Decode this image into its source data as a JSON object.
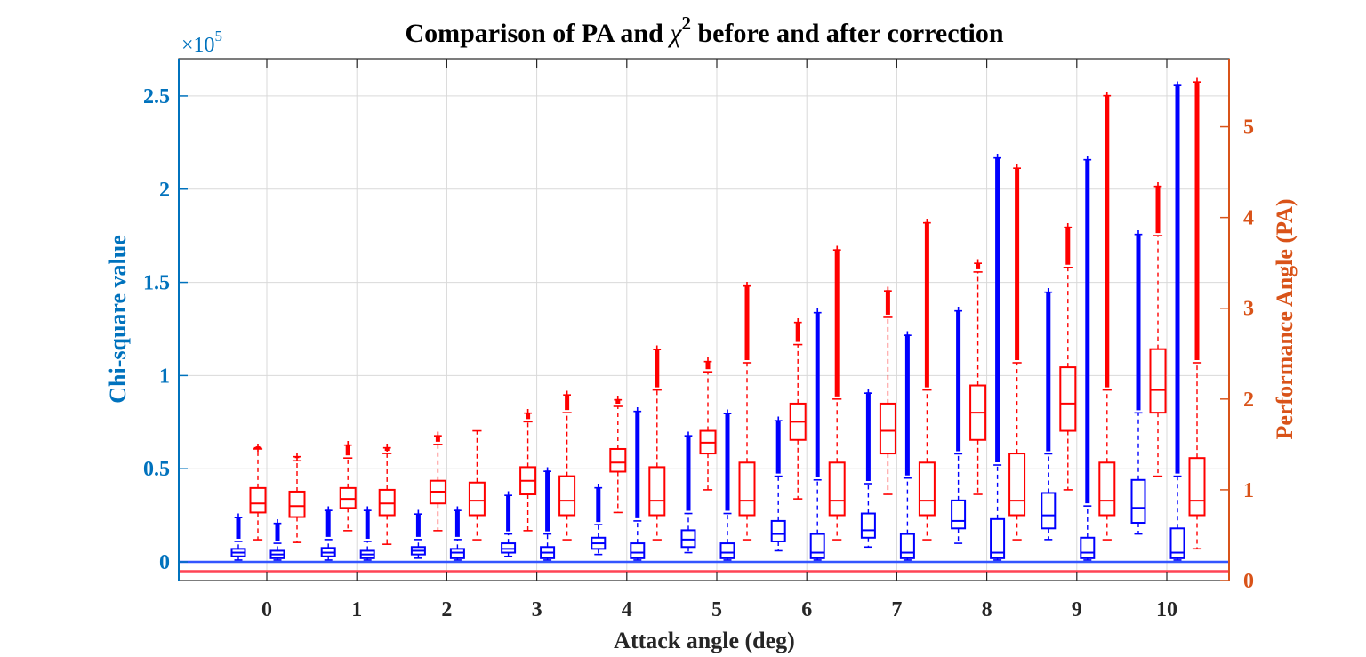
{
  "chart_data": {
    "type": "box",
    "title": "Comparison of PA and χ2 before and after correction",
    "title_parts": {
      "prefix": "Comparison of PA and ",
      "symbol": "χ",
      "superscript": "2",
      "suffix": " before and after correction"
    },
    "xlabel": "Attack angle (deg)",
    "ylabel_left": "Chi-square value",
    "ylabel_right": "Performance Angle (PA)",
    "left_axis_exponent": "×10",
    "left_axis_exponent_power": "5",
    "categories": [
      "0",
      "1",
      "2",
      "3",
      "4",
      "5",
      "6",
      "7",
      "8",
      "9",
      "10"
    ],
    "left_ylim": [
      -0.1,
      2.7
    ],
    "right_ylim": [
      0,
      5.75
    ],
    "left_ticks": [
      0,
      0.5,
      1,
      1.5,
      2,
      2.5
    ],
    "left_tick_labels": [
      "0",
      "0.5",
      "1",
      "1.5",
      "2",
      "2.5"
    ],
    "right_ticks": [
      0,
      1,
      2,
      3,
      4,
      5
    ],
    "right_tick_labels": [
      "0",
      "1",
      "2",
      "3",
      "4",
      "5"
    ],
    "grid": true,
    "colors": {
      "chi_square": "#0000FF",
      "pa": "#FF0000",
      "left_axis": "#0072BD",
      "right_axis": "#D95319",
      "grid": "#D9D9D9",
      "blue_line": "#3355FF",
      "red_line": "#FF4455"
    },
    "reference_lines": [
      {
        "axis": "left",
        "value": 0.0,
        "color": "#3355FF"
      },
      {
        "axis": "left",
        "value": -0.05,
        "color": "#FF4455"
      }
    ],
    "groups": [
      {
        "angle": 0,
        "chi_before": {
          "q1": 0.03,
          "median": 0.05,
          "q3": 0.07,
          "whisker_low": 0.01,
          "whisker_high": 0.11,
          "outlier_max": 0.24
        },
        "pa_before": {
          "q1": 0.75,
          "median": 0.85,
          "q3": 1.02,
          "whisker_low": 0.45,
          "whisker_high": 1.45,
          "outlier_max": 1.47
        },
        "chi_after": {
          "q1": 0.02,
          "median": 0.04,
          "q3": 0.06,
          "whisker_low": 0.01,
          "whisker_high": 0.1,
          "outlier_max": 0.21
        },
        "pa_after": {
          "q1": 0.7,
          "median": 0.82,
          "q3": 0.98,
          "whisker_low": 0.42,
          "whisker_high": 1.32,
          "outlier_max": 1.37
        }
      },
      {
        "angle": 1,
        "chi_before": {
          "q1": 0.03,
          "median": 0.05,
          "q3": 0.075,
          "whisker_low": 0.01,
          "whisker_high": 0.12,
          "outlier_max": 0.28
        },
        "pa_before": {
          "q1": 0.8,
          "median": 0.9,
          "q3": 1.02,
          "whisker_low": 0.55,
          "whisker_high": 1.35,
          "outlier_max": 1.5
        },
        "chi_after": {
          "q1": 0.02,
          "median": 0.04,
          "q3": 0.06,
          "whisker_low": 0.01,
          "whisker_high": 0.11,
          "outlier_max": 0.28
        },
        "pa_after": {
          "q1": 0.72,
          "median": 0.85,
          "q3": 1.0,
          "whisker_low": 0.4,
          "whisker_high": 1.4,
          "outlier_max": 1.47
        }
      },
      {
        "angle": 2,
        "chi_before": {
          "q1": 0.04,
          "median": 0.06,
          "q3": 0.08,
          "whisker_low": 0.02,
          "whisker_high": 0.12,
          "outlier_max": 0.26
        },
        "pa_before": {
          "q1": 0.85,
          "median": 0.98,
          "q3": 1.1,
          "whisker_low": 0.55,
          "whisker_high": 1.5,
          "outlier_max": 1.6
        },
        "chi_after": {
          "q1": 0.02,
          "median": 0.05,
          "q3": 0.07,
          "whisker_low": 0.01,
          "whisker_high": 0.12,
          "outlier_max": 0.28
        },
        "pa_after": {
          "q1": 0.72,
          "median": 0.88,
          "q3": 1.08,
          "whisker_low": 0.45,
          "whisker_high": 1.65,
          "outlier_max": 1.65
        }
      },
      {
        "angle": 3,
        "chi_before": {
          "q1": 0.05,
          "median": 0.07,
          "q3": 0.1,
          "whisker_low": 0.03,
          "whisker_high": 0.15,
          "outlier_max": 0.36
        },
        "pa_before": {
          "q1": 0.95,
          "median": 1.1,
          "q3": 1.25,
          "whisker_low": 0.55,
          "whisker_high": 1.75,
          "outlier_max": 1.85
        },
        "chi_after": {
          "q1": 0.02,
          "median": 0.05,
          "q3": 0.08,
          "whisker_low": 0.01,
          "whisker_high": 0.15,
          "outlier_max": 0.49
        },
        "pa_after": {
          "q1": 0.72,
          "median": 0.88,
          "q3": 1.15,
          "whisker_low": 0.45,
          "whisker_high": 1.85,
          "outlier_max": 2.05
        }
      },
      {
        "angle": 4,
        "chi_before": {
          "q1": 0.07,
          "median": 0.1,
          "q3": 0.13,
          "whisker_low": 0.04,
          "whisker_high": 0.2,
          "outlier_max": 0.4
        },
        "pa_before": {
          "q1": 1.2,
          "median": 1.3,
          "q3": 1.45,
          "whisker_low": 0.75,
          "whisker_high": 1.92,
          "outlier_max": 2.0
        },
        "chi_after": {
          "q1": 0.02,
          "median": 0.05,
          "q3": 0.1,
          "whisker_low": 0.01,
          "whisker_high": 0.22,
          "outlier_max": 0.81
        },
        "pa_after": {
          "q1": 0.72,
          "median": 0.88,
          "q3": 1.25,
          "whisker_low": 0.45,
          "whisker_high": 2.1,
          "outlier_max": 2.55
        }
      },
      {
        "angle": 5,
        "chi_before": {
          "q1": 0.08,
          "median": 0.12,
          "q3": 0.17,
          "whisker_low": 0.05,
          "whisker_high": 0.26,
          "outlier_max": 0.68
        },
        "pa_before": {
          "q1": 1.4,
          "median": 1.52,
          "q3": 1.65,
          "whisker_low": 1.0,
          "whisker_high": 2.3,
          "outlier_max": 2.42
        },
        "chi_after": {
          "q1": 0.02,
          "median": 0.05,
          "q3": 0.1,
          "whisker_low": 0.01,
          "whisker_high": 0.26,
          "outlier_max": 0.8
        },
        "pa_after": {
          "q1": 0.72,
          "median": 0.88,
          "q3": 1.3,
          "whisker_low": 0.45,
          "whisker_high": 2.4,
          "outlier_max": 3.25
        }
      },
      {
        "angle": 6,
        "chi_before": {
          "q1": 0.11,
          "median": 0.15,
          "q3": 0.22,
          "whisker_low": 0.06,
          "whisker_high": 0.46,
          "outlier_max": 0.76
        },
        "pa_before": {
          "q1": 1.55,
          "median": 1.75,
          "q3": 1.95,
          "whisker_low": 0.9,
          "whisker_high": 2.6,
          "outlier_max": 2.85
        },
        "chi_after": {
          "q1": 0.02,
          "median": 0.05,
          "q3": 0.15,
          "whisker_low": 0.01,
          "whisker_high": 0.44,
          "outlier_max": 1.34
        },
        "pa_after": {
          "q1": 0.72,
          "median": 0.88,
          "q3": 1.3,
          "whisker_low": 0.45,
          "whisker_high": 2.0,
          "outlier_max": 3.65
        }
      },
      {
        "angle": 7,
        "chi_before": {
          "q1": 0.13,
          "median": 0.17,
          "q3": 0.26,
          "whisker_low": 0.08,
          "whisker_high": 0.42,
          "outlier_max": 0.91
        },
        "pa_before": {
          "q1": 1.4,
          "median": 1.65,
          "q3": 1.95,
          "whisker_low": 0.95,
          "whisker_high": 2.9,
          "outlier_max": 3.2
        },
        "chi_after": {
          "q1": 0.02,
          "median": 0.05,
          "q3": 0.15,
          "whisker_low": 0.01,
          "whisker_high": 0.45,
          "outlier_max": 1.22
        },
        "pa_after": {
          "q1": 0.72,
          "median": 0.88,
          "q3": 1.3,
          "whisker_low": 0.45,
          "whisker_high": 2.1,
          "outlier_max": 3.95
        }
      },
      {
        "angle": 8,
        "chi_before": {
          "q1": 0.18,
          "median": 0.22,
          "q3": 0.33,
          "whisker_low": 0.1,
          "whisker_high": 0.58,
          "outlier_max": 1.35
        },
        "pa_before": {
          "q1": 1.55,
          "median": 1.85,
          "q3": 2.15,
          "whisker_low": 0.95,
          "whisker_high": 3.4,
          "outlier_max": 3.5
        },
        "chi_after": {
          "q1": 0.02,
          "median": 0.05,
          "q3": 0.23,
          "whisker_low": 0.01,
          "whisker_high": 0.52,
          "outlier_max": 2.17
        },
        "pa_after": {
          "q1": 0.72,
          "median": 0.88,
          "q3": 1.4,
          "whisker_low": 0.45,
          "whisker_high": 2.4,
          "outlier_max": 4.55
        }
      },
      {
        "angle": 9,
        "chi_before": {
          "q1": 0.18,
          "median": 0.25,
          "q3": 0.37,
          "whisker_low": 0.12,
          "whisker_high": 0.58,
          "outlier_max": 1.45
        },
        "pa_before": {
          "q1": 1.65,
          "median": 1.95,
          "q3": 2.35,
          "whisker_low": 1.0,
          "whisker_high": 3.45,
          "outlier_max": 3.9
        },
        "chi_after": {
          "q1": 0.02,
          "median": 0.05,
          "q3": 0.13,
          "whisker_low": 0.01,
          "whisker_high": 0.3,
          "outlier_max": 2.16
        },
        "pa_after": {
          "q1": 0.72,
          "median": 0.88,
          "q3": 1.3,
          "whisker_low": 0.45,
          "whisker_high": 2.1,
          "outlier_max": 5.35
        }
      },
      {
        "angle": 10,
        "chi_before": {
          "q1": 0.21,
          "median": 0.29,
          "q3": 0.44,
          "whisker_low": 0.15,
          "whisker_high": 0.8,
          "outlier_max": 1.76
        },
        "pa_before": {
          "q1": 1.85,
          "median": 2.1,
          "q3": 2.55,
          "whisker_low": 1.15,
          "whisker_high": 3.8,
          "outlier_max": 4.35
        },
        "chi_after": {
          "q1": 0.02,
          "median": 0.05,
          "q3": 0.18,
          "whisker_low": 0.01,
          "whisker_high": 0.46,
          "outlier_max": 2.56
        },
        "pa_after": {
          "q1": 0.72,
          "median": 0.88,
          "q3": 1.35,
          "whisker_low": 0.35,
          "whisker_high": 2.4,
          "outlier_max": 5.5
        }
      }
    ]
  }
}
